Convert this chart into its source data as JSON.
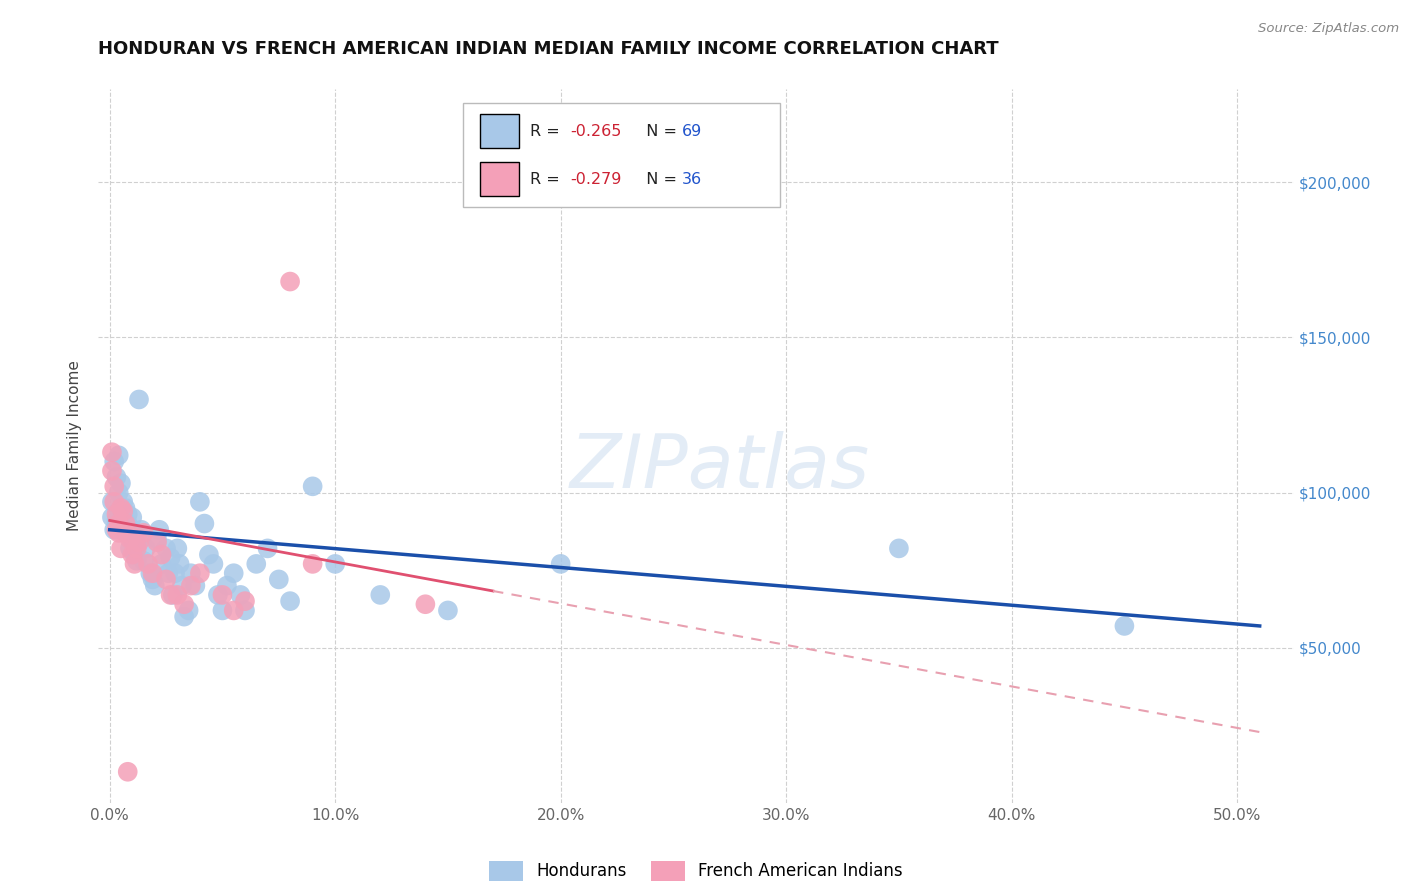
{
  "title": "HONDURAN VS FRENCH AMERICAN INDIAN MEDIAN FAMILY INCOME CORRELATION CHART",
  "source": "Source: ZipAtlas.com",
  "ylabel": "Median Family Income",
  "xlabel_ticks": [
    "0.0%",
    "10.0%",
    "20.0%",
    "30.0%",
    "40.0%",
    "50.0%"
  ],
  "xlabel_vals": [
    0.0,
    0.1,
    0.2,
    0.3,
    0.4,
    0.5
  ],
  "ytick_vals": [
    50000,
    100000,
    150000,
    200000
  ],
  "right_ytick_labels": [
    "$50,000",
    "$100,000",
    "$150,000",
    "$200,000"
  ],
  "xlim": [
    -0.005,
    0.525
  ],
  "ylim": [
    0,
    230000
  ],
  "honduran_color": "#a8c8e8",
  "french_color": "#f4a0b8",
  "honduran_line_color": "#1a4faa",
  "french_line_solid_color": "#e05070",
  "french_line_dash_color": "#e8a0b0",
  "R_honduran": -0.265,
  "N_honduran": 69,
  "R_french": -0.279,
  "N_french": 36,
  "legend_labels": [
    "Hondurans",
    "French American Indians"
  ],
  "watermark": "ZIPatlas",
  "background_color": "#ffffff",
  "grid_color": "#d0d0d0",
  "honduran_x": [
    0.001,
    0.001,
    0.002,
    0.002,
    0.003,
    0.003,
    0.004,
    0.004,
    0.004,
    0.005,
    0.005,
    0.005,
    0.006,
    0.006,
    0.007,
    0.007,
    0.008,
    0.008,
    0.009,
    0.009,
    0.01,
    0.01,
    0.011,
    0.011,
    0.012,
    0.012,
    0.013,
    0.014,
    0.015,
    0.016,
    0.018,
    0.019,
    0.02,
    0.021,
    0.022,
    0.023,
    0.025,
    0.026,
    0.027,
    0.028,
    0.029,
    0.03,
    0.031,
    0.032,
    0.033,
    0.035,
    0.036,
    0.038,
    0.04,
    0.042,
    0.044,
    0.046,
    0.048,
    0.05,
    0.052,
    0.055,
    0.058,
    0.06,
    0.065,
    0.07,
    0.075,
    0.08,
    0.09,
    0.1,
    0.12,
    0.15,
    0.2,
    0.35,
    0.45
  ],
  "honduran_y": [
    97000,
    92000,
    110000,
    88000,
    105000,
    91000,
    89000,
    100000,
    112000,
    93000,
    95000,
    103000,
    89000,
    97000,
    95000,
    87000,
    90000,
    93000,
    88000,
    82000,
    85000,
    92000,
    87000,
    80000,
    78000,
    83000,
    130000,
    88000,
    78000,
    82000,
    74000,
    72000,
    70000,
    85000,
    88000,
    77000,
    82000,
    74000,
    79000,
    67000,
    74000,
    82000,
    77000,
    70000,
    60000,
    62000,
    74000,
    70000,
    97000,
    90000,
    80000,
    77000,
    67000,
    62000,
    70000,
    74000,
    67000,
    62000,
    77000,
    82000,
    72000,
    65000,
    102000,
    77000,
    67000,
    62000,
    77000,
    82000,
    57000
  ],
  "french_x": [
    0.001,
    0.001,
    0.002,
    0.002,
    0.003,
    0.003,
    0.004,
    0.004,
    0.005,
    0.005,
    0.006,
    0.007,
    0.008,
    0.009,
    0.01,
    0.011,
    0.012,
    0.013,
    0.015,
    0.017,
    0.019,
    0.021,
    0.023,
    0.025,
    0.027,
    0.03,
    0.033,
    0.036,
    0.04,
    0.05,
    0.055,
    0.06,
    0.08,
    0.09,
    0.14,
    0.008
  ],
  "french_y": [
    113000,
    107000,
    102000,
    97000,
    93000,
    88000,
    87000,
    90000,
    95000,
    82000,
    94000,
    90000,
    87000,
    85000,
    80000,
    77000,
    82000,
    84000,
    87000,
    77000,
    74000,
    84000,
    80000,
    72000,
    67000,
    67000,
    64000,
    70000,
    74000,
    67000,
    62000,
    65000,
    168000,
    77000,
    64000,
    10000
  ]
}
